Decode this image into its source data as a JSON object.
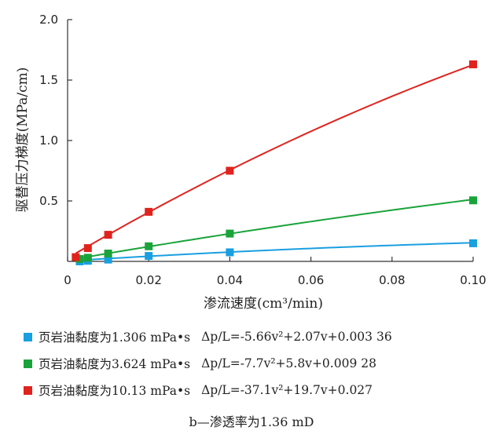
{
  "chart_data": {
    "type": "line",
    "title": "",
    "xlabel": "渗流速度(cm³/min)",
    "ylabel": "驱替压力梯度(MPa/cm)",
    "xlim": [
      0,
      0.1
    ],
    "ylim": [
      0,
      2.0
    ],
    "x_ticks": [
      "0",
      "0.02",
      "0.04",
      "0.06",
      "0.08",
      "0.10"
    ],
    "y_ticks": [
      "0.5",
      "1.0",
      "1.5",
      "2.0"
    ],
    "grid": false,
    "legend_position": "bottom",
    "series": [
      {
        "name": "页岩油黏度为1.306 mPa•s",
        "equation": "Δp/L=-5.66v²+2.07v+0.003 36",
        "color": "#1a9fe0",
        "points": [
          [
            0.003,
            0.0
          ],
          [
            0.005,
            0.005
          ],
          [
            0.01,
            0.015
          ],
          [
            0.02,
            0.045
          ],
          [
            0.04,
            0.075
          ],
          [
            0.1,
            0.15
          ]
        ],
        "fit": {
          "a": -5.66,
          "b": 2.07,
          "c": 0.00336
        }
      },
      {
        "name": "页岩油黏度为3.624 mPa•s",
        "equation": "Δp/L=-7.7v²+5.8v+0.009 28",
        "color": "#1aa33a",
        "points": [
          [
            0.003,
            0.02
          ],
          [
            0.005,
            0.03
          ],
          [
            0.01,
            0.065
          ],
          [
            0.02,
            0.125
          ],
          [
            0.04,
            0.23
          ],
          [
            0.1,
            0.505
          ]
        ],
        "fit": {
          "a": -7.7,
          "b": 5.8,
          "c": 0.00928
        }
      },
      {
        "name": "页岩油黏度为10.13 mPa•s",
        "equation": "Δp/L=-37.1v²+19.7v+0.027",
        "color": "#e0231e",
        "points": [
          [
            0.002,
            0.035
          ],
          [
            0.005,
            0.11
          ],
          [
            0.01,
            0.22
          ],
          [
            0.02,
            0.41
          ],
          [
            0.04,
            0.75
          ],
          [
            0.1,
            1.63
          ]
        ],
        "fit": {
          "a": -37.1,
          "b": 19.7,
          "c": 0.027
        }
      }
    ]
  },
  "caption": "b—渗透率为1.36 mD"
}
